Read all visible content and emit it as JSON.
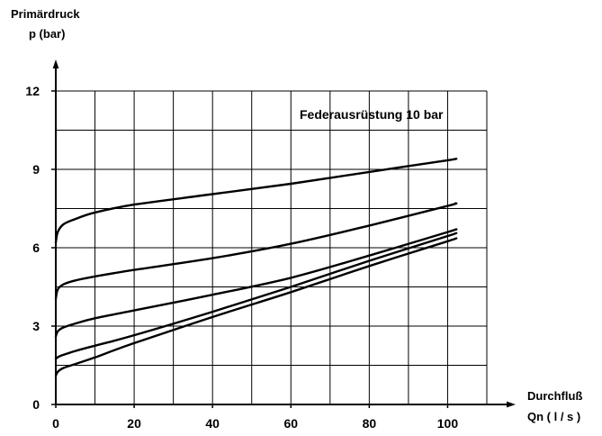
{
  "chart_data": {
    "type": "line",
    "title": "",
    "annotation": "Federausrüstung 10 bar",
    "ylabel_line1": "Primärdruck",
    "ylabel_line2": "p (bar)",
    "xlabel_line1": "Durchfluß",
    "xlabel_line2": "Qn ( l / s )",
    "xlim": [
      0,
      110
    ],
    "ylim": [
      0,
      12
    ],
    "xticks": [
      0,
      20,
      40,
      60,
      80,
      100
    ],
    "yticks": [
      0,
      3,
      6,
      9,
      12
    ],
    "grid": true,
    "series": [
      {
        "x": [
          0,
          0.5,
          2,
          5,
          10,
          20,
          40,
          60,
          80,
          100,
          102
        ],
        "y": [
          6.2,
          6.6,
          6.9,
          7.1,
          7.35,
          7.65,
          8.05,
          8.45,
          8.9,
          9.35,
          9.4
        ]
      },
      {
        "x": [
          0,
          0.5,
          2,
          5,
          10,
          20,
          40,
          60,
          80,
          100,
          102
        ],
        "y": [
          4.05,
          4.4,
          4.6,
          4.75,
          4.9,
          5.15,
          5.6,
          6.15,
          6.85,
          7.6,
          7.7
        ]
      },
      {
        "x": [
          0,
          0.5,
          2,
          5,
          10,
          20,
          40,
          60,
          80,
          100,
          102
        ],
        "y": [
          2.6,
          2.8,
          2.95,
          3.1,
          3.3,
          3.6,
          4.2,
          4.85,
          5.7,
          6.6,
          6.7
        ]
      },
      {
        "x": [
          0,
          1,
          3,
          5,
          10,
          20,
          40,
          60,
          80,
          100,
          102
        ],
        "y": [
          1.75,
          1.85,
          1.95,
          2.05,
          2.25,
          2.65,
          3.55,
          4.5,
          5.5,
          6.45,
          6.55
        ]
      },
      {
        "x": [
          0,
          0.5,
          2,
          5,
          10,
          20,
          40,
          60,
          80,
          100,
          102
        ],
        "y": [
          1.1,
          1.25,
          1.4,
          1.55,
          1.8,
          2.35,
          3.35,
          4.3,
          5.3,
          6.25,
          6.35
        ]
      }
    ]
  }
}
